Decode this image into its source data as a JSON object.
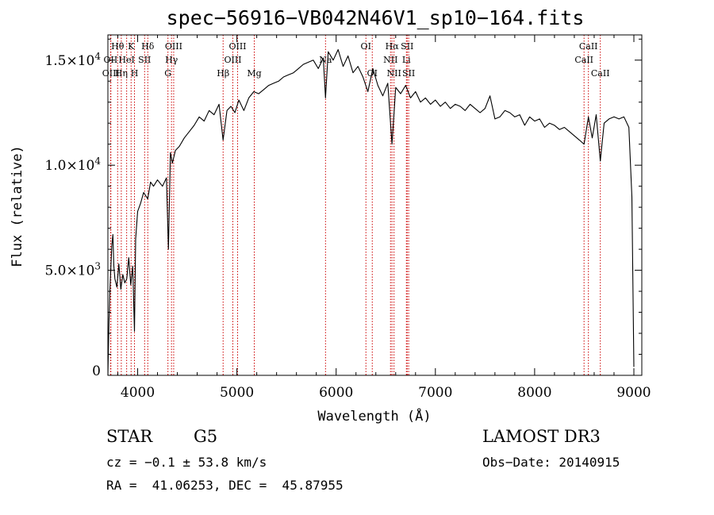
{
  "chart_data": {
    "type": "line",
    "title": "spec−56916−VB042N46V1_sp10−164.fits",
    "xlabel": "Wavelength (Å)",
    "ylabel": "Flux (relative)",
    "xlim": [
      3700,
      9080
    ],
    "ylim": [
      0,
      16200
    ],
    "x_ticks": [
      4000,
      5000,
      6000,
      7000,
      8000,
      9000
    ],
    "x_tick_labels": [
      "4000",
      "5000",
      "6000",
      "7000",
      "8000",
      "9000"
    ],
    "y_ticks": [
      0,
      5000,
      10000,
      15000
    ],
    "y_tick_labels": [
      "0",
      "5.0×10",
      "1.0×10",
      "1.5×10"
    ],
    "y_tick_exponents": [
      "",
      "3",
      "4",
      "4"
    ],
    "grid": false,
    "line_color": "#000000",
    "marker_color": "#cc0000",
    "series": [
      {
        "x": [
          3700,
          3710,
          3720,
          3730,
          3740,
          3750,
          3760,
          3770,
          3790,
          3810,
          3830,
          3850,
          3870,
          3890,
          3910,
          3930,
          3950,
          3968,
          3980,
          4000,
          4030,
          4060,
          4101,
          4130,
          4160,
          4200,
          4250,
          4290,
          4310,
          4330,
          4350,
          4380,
          4420,
          4470,
          4520,
          4570,
          4620,
          4670,
          4720,
          4770,
          4820,
          4861,
          4900,
          4940,
          4980,
          5020,
          5070,
          5120,
          5170,
          5220,
          5270,
          5320,
          5370,
          5420,
          5470,
          5520,
          5570,
          5620,
          5670,
          5720,
          5770,
          5820,
          5870,
          5893,
          5920,
          5970,
          6020,
          6070,
          6120,
          6170,
          6220,
          6270,
          6320,
          6370,
          6420,
          6470,
          6520,
          6563,
          6600,
          6650,
          6700,
          6750,
          6800,
          6850,
          6900,
          6950,
          7000,
          7050,
          7100,
          7150,
          7200,
          7250,
          7300,
          7350,
          7400,
          7450,
          7500,
          7550,
          7600,
          7650,
          7700,
          7750,
          7800,
          7850,
          7900,
          7950,
          8000,
          8050,
          8100,
          8150,
          8200,
          8250,
          8300,
          8350,
          8400,
          8450,
          8498,
          8542,
          8580,
          8620,
          8662,
          8700,
          8750,
          8800,
          8850,
          8900,
          8950,
          8980,
          9000
        ],
        "y": [
          0,
          2500,
          4000,
          5200,
          6200,
          6700,
          5200,
          4600,
          4200,
          5300,
          4100,
          4800,
          4400,
          4600,
          5600,
          4300,
          5200,
          2100,
          6500,
          7800,
          8200,
          8700,
          8400,
          9200,
          9000,
          9300,
          9000,
          9400,
          6000,
          10600,
          10100,
          10700,
          10900,
          11300,
          11600,
          11900,
          12300,
          12100,
          12600,
          12400,
          12900,
          11200,
          12600,
          12800,
          12500,
          13100,
          12600,
          13200,
          13500,
          13400,
          13600,
          13800,
          13900,
          14000,
          14200,
          14300,
          14400,
          14600,
          14800,
          14900,
          15000,
          14600,
          15100,
          13200,
          15400,
          15000,
          15500,
          14700,
          15200,
          14400,
          14700,
          14200,
          13500,
          14600,
          13800,
          13300,
          13900,
          11000,
          13700,
          13400,
          13800,
          13200,
          13500,
          13000,
          13200,
          12900,
          13100,
          12800,
          13000,
          12700,
          12900,
          12800,
          12600,
          12900,
          12700,
          12500,
          12700,
          13300,
          12200,
          12300,
          12600,
          12500,
          12300,
          12400,
          11900,
          12300,
          12100,
          12200,
          11800,
          12000,
          11900,
          11700,
          11800,
          11600,
          11400,
          11200,
          11000,
          12300,
          11300,
          12400,
          10200,
          12000,
          12200,
          12300,
          12200,
          12300,
          11800,
          8500,
          400
        ]
      }
    ],
    "annotations": [
      {
        "label": "Hθ",
        "x": 3798,
        "row": 1
      },
      {
        "label": "OII",
        "x": 3727,
        "row": 2
      },
      {
        "label": "OIII",
        "x": 3730,
        "row": 3
      },
      {
        "label": "K",
        "x": 3934,
        "row": 1
      },
      {
        "label": "HeI",
        "x": 3889,
        "row": 2
      },
      {
        "label": "Hη",
        "x": 3835,
        "row": 3
      },
      {
        "label": "SII",
        "x": 4070,
        "row": 2
      },
      {
        "label": "H",
        "x": 3968,
        "row": 3
      },
      {
        "label": "Hδ",
        "x": 4102,
        "row": 1
      },
      {
        "label": "OIII",
        "x": 4363,
        "row": 1
      },
      {
        "label": "Hγ",
        "x": 4341,
        "row": 2
      },
      {
        "label": "G",
        "x": 4305,
        "row": 3
      },
      {
        "label": "Hβ",
        "x": 4861,
        "row": 3
      },
      {
        "label": "OIII",
        "x": 5007,
        "row": 1
      },
      {
        "label": "OIII",
        "x": 4959,
        "row": 2
      },
      {
        "label": "Mg",
        "x": 5175,
        "row": 3
      },
      {
        "label": "Na",
        "x": 5893,
        "row": 2
      },
      {
        "label": "OI",
        "x": 6300,
        "row": 1
      },
      {
        "label": "OI",
        "x": 6364,
        "row": 3
      },
      {
        "label": "Hα",
        "x": 6563,
        "row": 1
      },
      {
        "label": "SII",
        "x": 6716,
        "row": 1
      },
      {
        "label": "NII",
        "x": 6548,
        "row": 2
      },
      {
        "label": "Li",
        "x": 6708,
        "row": 2
      },
      {
        "label": "NII",
        "x": 6583,
        "row": 3
      },
      {
        "label": "SII",
        "x": 6731,
        "row": 3
      },
      {
        "label": "CaII",
        "x": 8542,
        "row": 1
      },
      {
        "label": "CaII",
        "x": 8498,
        "row": 2
      },
      {
        "label": "CaII",
        "x": 8662,
        "row": 3
      }
    ]
  },
  "info": {
    "class": "STAR",
    "subclass": "G5",
    "survey": "LAMOST DR3",
    "cz": "cz = −0.1 ± 53.8 km/s",
    "obs_date": "Obs−Date: 20140915",
    "radec": "RA =  41.06253, DEC =  45.87955"
  }
}
